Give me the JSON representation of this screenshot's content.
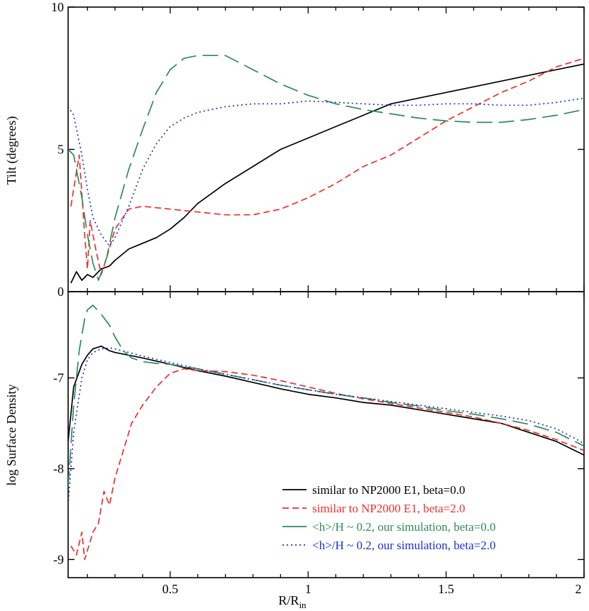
{
  "chart_data": [
    {
      "type": "line",
      "ylabel": "Tilt (degrees)",
      "xlim": [
        0.13,
        2.0
      ],
      "ylim": [
        0,
        10
      ],
      "yticks": [
        0,
        5,
        10
      ],
      "ytick_labels": [
        "0",
        "5",
        "10"
      ],
      "series": [
        {
          "name": "similar to NP2000 E1, beta=0.0",
          "style": "solid",
          "color": "#000000",
          "x": [
            0.14,
            0.16,
            0.18,
            0.2,
            0.22,
            0.25,
            0.28,
            0.3,
            0.35,
            0.4,
            0.45,
            0.5,
            0.55,
            0.6,
            0.7,
            0.8,
            0.9,
            1.0,
            1.1,
            1.2,
            1.3,
            1.4,
            1.5,
            1.6,
            1.7,
            1.8,
            1.9,
            2.0
          ],
          "y": [
            0.3,
            0.7,
            0.4,
            0.6,
            0.5,
            0.8,
            0.9,
            1.1,
            1.5,
            1.7,
            1.9,
            2.2,
            2.6,
            3.1,
            3.8,
            4.4,
            5.0,
            5.4,
            5.8,
            6.2,
            6.6,
            6.8,
            7.0,
            7.2,
            7.4,
            7.6,
            7.8,
            8.0
          ]
        },
        {
          "name": "similar to NP2000 E1, beta=2.0",
          "style": "dashed",
          "color": "#e8312f",
          "x": [
            0.14,
            0.17,
            0.19,
            0.2,
            0.21,
            0.23,
            0.25,
            0.27,
            0.3,
            0.35,
            0.4,
            0.5,
            0.6,
            0.7,
            0.8,
            0.9,
            1.0,
            1.1,
            1.2,
            1.3,
            1.4,
            1.5,
            1.6,
            1.7,
            1.8,
            1.9,
            2.0
          ],
          "y": [
            3.0,
            4.8,
            2.0,
            0.8,
            2.5,
            1.5,
            0.6,
            1.2,
            2.2,
            2.9,
            3.0,
            2.9,
            2.8,
            2.7,
            2.7,
            2.9,
            3.3,
            3.8,
            4.4,
            4.8,
            5.4,
            6.0,
            6.5,
            7.0,
            7.4,
            7.9,
            8.2
          ]
        },
        {
          "name": "<h>/H ~ 0.2, our simulation, beta=0.0",
          "style": "long-dash",
          "color": "#2e8b57",
          "x": [
            0.13,
            0.15,
            0.18,
            0.2,
            0.22,
            0.24,
            0.27,
            0.3,
            0.35,
            0.4,
            0.45,
            0.5,
            0.55,
            0.6,
            0.7,
            0.8,
            0.9,
            1.0,
            1.1,
            1.2,
            1.3,
            1.4,
            1.5,
            1.6,
            1.7,
            1.8,
            1.9,
            2.0
          ],
          "y": [
            5.0,
            4.8,
            3.3,
            2.0,
            1.0,
            0.4,
            1.2,
            2.6,
            4.3,
            5.7,
            7.0,
            7.8,
            8.2,
            8.3,
            8.3,
            7.8,
            7.3,
            6.9,
            6.6,
            6.4,
            6.25,
            6.1,
            6.0,
            5.95,
            5.95,
            6.05,
            6.2,
            6.4
          ]
        },
        {
          "name": "<h>/H ~ 0.2, our simulation, beta=2.0",
          "style": "dotted",
          "color": "#1f2fd6",
          "x": [
            0.13,
            0.15,
            0.18,
            0.2,
            0.22,
            0.25,
            0.28,
            0.3,
            0.35,
            0.4,
            0.45,
            0.5,
            0.55,
            0.6,
            0.7,
            0.8,
            0.9,
            1.0,
            1.1,
            1.2,
            1.3,
            1.4,
            1.5,
            1.6,
            1.7,
            1.8,
            1.9,
            2.0
          ],
          "y": [
            6.5,
            6.2,
            4.8,
            3.6,
            2.6,
            2.0,
            1.6,
            1.9,
            3.0,
            4.3,
            5.2,
            5.8,
            6.1,
            6.3,
            6.5,
            6.6,
            6.6,
            6.7,
            6.65,
            6.6,
            6.55,
            6.55,
            6.6,
            6.6,
            6.55,
            6.55,
            6.65,
            6.8
          ]
        }
      ]
    },
    {
      "type": "line",
      "ylabel": "log Surface Density",
      "xlabel": "R/R",
      "xlabel_sub": "in",
      "xlim": [
        0.13,
        2.0
      ],
      "ylim": [
        -9.2,
        -6.05
      ],
      "yticks": [
        -9,
        -8,
        -7
      ],
      "ytick_labels": [
        "-9",
        "-8",
        "-7"
      ],
      "xticks": [
        0.5,
        1.0,
        1.5,
        2.0
      ],
      "xtick_labels": [
        "0.5",
        "1",
        "1.5",
        "2"
      ],
      "series": [
        {
          "name": "similar to NP2000 E1, beta=0.0",
          "style": "solid",
          "color": "#000000",
          "x": [
            0.13,
            0.15,
            0.18,
            0.2,
            0.22,
            0.25,
            0.28,
            0.3,
            0.35,
            0.4,
            0.5,
            0.6,
            0.7,
            0.8,
            0.9,
            1.0,
            1.1,
            1.2,
            1.3,
            1.4,
            1.5,
            1.6,
            1.7,
            1.8,
            1.9,
            2.0
          ],
          "y": [
            -7.7,
            -7.1,
            -6.85,
            -6.75,
            -6.68,
            -6.65,
            -6.7,
            -6.72,
            -6.75,
            -6.78,
            -6.85,
            -6.92,
            -6.98,
            -7.05,
            -7.12,
            -7.18,
            -7.22,
            -7.27,
            -7.3,
            -7.35,
            -7.4,
            -7.45,
            -7.5,
            -7.6,
            -7.7,
            -7.85
          ]
        },
        {
          "name": "similar to NP2000 E1, beta=2.0",
          "style": "dashed",
          "color": "#e8312f",
          "x": [
            0.14,
            0.16,
            0.18,
            0.19,
            0.2,
            0.22,
            0.24,
            0.26,
            0.28,
            0.3,
            0.33,
            0.36,
            0.4,
            0.45,
            0.5,
            0.55,
            0.6,
            0.7,
            0.8,
            0.9,
            1.0,
            1.1,
            1.2,
            1.3,
            1.4,
            1.5,
            1.6,
            1.7,
            1.8,
            1.9,
            2.0
          ],
          "y": [
            -8.85,
            -8.95,
            -8.7,
            -9.0,
            -8.9,
            -8.7,
            -8.6,
            -8.25,
            -8.4,
            -8.1,
            -7.8,
            -7.5,
            -7.3,
            -7.1,
            -6.95,
            -6.9,
            -6.92,
            -6.93,
            -6.97,
            -7.03,
            -7.1,
            -7.17,
            -7.23,
            -7.28,
            -7.33,
            -7.38,
            -7.43,
            -7.5,
            -7.58,
            -7.68,
            -7.8
          ]
        },
        {
          "name": "<h>/H ~ 0.2, our simulation, beta=0.0",
          "style": "long-dash",
          "color": "#2e8b57",
          "x": [
            0.13,
            0.15,
            0.17,
            0.19,
            0.2,
            0.22,
            0.25,
            0.28,
            0.3,
            0.33,
            0.36,
            0.4,
            0.45,
            0.5,
            0.6,
            0.7,
            0.8,
            0.9,
            1.0,
            1.1,
            1.2,
            1.3,
            1.4,
            1.5,
            1.6,
            1.7,
            1.8,
            1.9,
            2.0
          ],
          "y": [
            -8.2,
            -7.3,
            -6.7,
            -6.35,
            -6.25,
            -6.2,
            -6.3,
            -6.42,
            -6.55,
            -6.7,
            -6.78,
            -6.82,
            -6.84,
            -6.85,
            -6.9,
            -6.96,
            -7.02,
            -7.08,
            -7.13,
            -7.18,
            -7.22,
            -7.27,
            -7.31,
            -7.36,
            -7.4,
            -7.45,
            -7.51,
            -7.6,
            -7.75
          ]
        },
        {
          "name": "<h>/H ~ 0.2, our simulation, beta=2.0",
          "style": "dotted",
          "color": "#1f2fd6",
          "x": [
            0.13,
            0.15,
            0.18,
            0.2,
            0.22,
            0.25,
            0.28,
            0.3,
            0.35,
            0.4,
            0.5,
            0.6,
            0.7,
            0.8,
            0.9,
            1.0,
            1.1,
            1.2,
            1.3,
            1.4,
            1.5,
            1.6,
            1.7,
            1.8,
            1.9,
            2.0
          ],
          "y": [
            -8.4,
            -7.6,
            -7.0,
            -6.8,
            -6.72,
            -6.68,
            -6.67,
            -6.68,
            -6.72,
            -6.76,
            -6.83,
            -6.9,
            -6.96,
            -7.02,
            -7.08,
            -7.13,
            -7.18,
            -7.22,
            -7.26,
            -7.3,
            -7.34,
            -7.38,
            -7.42,
            -7.47,
            -7.56,
            -7.72
          ]
        }
      ]
    }
  ],
  "legend": {
    "placement": "bottom-right of lower panel",
    "entries": [
      "similar to NP2000 E1, beta=0.0",
      "similar to NP2000 E1, beta=2.0",
      "<h>/H ~ 0.2, our simulation, beta=0.0",
      "<h>/H ~ 0.2, our simulation, beta=2.0"
    ]
  }
}
